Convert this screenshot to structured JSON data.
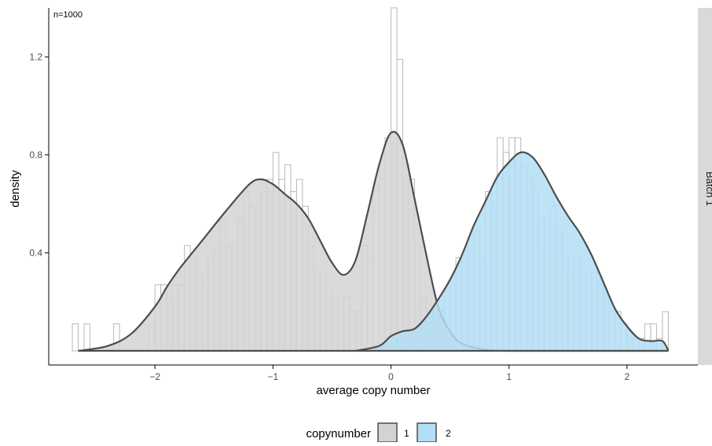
{
  "chart_data": {
    "type": "histogram-density",
    "annotation": "n=1000",
    "xlabel": "average copy number",
    "ylabel": "density",
    "strip_label": "Batch 1",
    "xlim": [
      -2.9,
      2.6
    ],
    "ylim": [
      0,
      1.4
    ],
    "x_ticks": [
      -2,
      -1,
      0,
      1,
      2
    ],
    "x_tick_labels": [
      "−2",
      "−1",
      "0",
      "1",
      "2"
    ],
    "y_ticks": [
      0.4,
      0.8,
      1.2
    ],
    "y_tick_labels": [
      "0.4",
      "0.8",
      "1.2"
    ],
    "grid": false,
    "legend": {
      "title": "copynumber",
      "position": "bottom",
      "entries": [
        {
          "label": "1",
          "fill": "#d3d3d3"
        },
        {
          "label": "2",
          "fill": "#b3def5"
        }
      ]
    },
    "colors": {
      "component_1_fill": "#d3d3d3",
      "component_2_fill": "#b3def5",
      "curve_stroke": "#4d4d4d",
      "hist_stroke": "#b8b8b8",
      "strip_fill": "#d9d9d9"
    },
    "histogram": {
      "binwidth": 0.05,
      "bins": [
        {
          "x": -2.675,
          "density": 0.11
        },
        {
          "x": -2.575,
          "density": 0.11
        },
        {
          "x": -2.325,
          "density": 0.11
        },
        {
          "x": -2.025,
          "density": 0.11
        },
        {
          "x": -1.975,
          "density": 0.27
        },
        {
          "x": -1.925,
          "density": 0.27
        },
        {
          "x": -1.875,
          "density": 0.21
        },
        {
          "x": -1.825,
          "density": 0.27
        },
        {
          "x": -1.775,
          "density": 0.27
        },
        {
          "x": -1.725,
          "density": 0.43
        },
        {
          "x": -1.675,
          "density": 0.38
        },
        {
          "x": -1.625,
          "density": 0.32
        },
        {
          "x": -1.575,
          "density": 0.27
        },
        {
          "x": -1.525,
          "density": 0.38
        },
        {
          "x": -1.475,
          "density": 0.43
        },
        {
          "x": -1.425,
          "density": 0.54
        },
        {
          "x": -1.375,
          "density": 0.43
        },
        {
          "x": -1.325,
          "density": 0.38
        },
        {
          "x": -1.275,
          "density": 0.54
        },
        {
          "x": -1.225,
          "density": 0.65
        },
        {
          "x": -1.175,
          "density": 0.59
        },
        {
          "x": -1.125,
          "density": 0.54
        },
        {
          "x": -1.075,
          "density": 0.65
        },
        {
          "x": -1.025,
          "density": 0.7
        },
        {
          "x": -0.975,
          "density": 0.81
        },
        {
          "x": -0.925,
          "density": 0.7
        },
        {
          "x": -0.875,
          "density": 0.76
        },
        {
          "x": -0.825,
          "density": 0.65
        },
        {
          "x": -0.775,
          "density": 0.7
        },
        {
          "x": -0.725,
          "density": 0.59
        },
        {
          "x": -0.675,
          "density": 0.43
        },
        {
          "x": -0.625,
          "density": 0.32
        },
        {
          "x": -0.575,
          "density": 0.32
        },
        {
          "x": -0.525,
          "density": 0.27
        },
        {
          "x": -0.475,
          "density": 0.22
        },
        {
          "x": -0.425,
          "density": 0.16
        },
        {
          "x": -0.375,
          "density": 0.22
        },
        {
          "x": -0.325,
          "density": 0.16
        },
        {
          "x": -0.275,
          "density": 0.16
        },
        {
          "x": -0.225,
          "density": 0.43
        },
        {
          "x": -0.175,
          "density": 0.38
        },
        {
          "x": -0.125,
          "density": 0.65
        },
        {
          "x": -0.075,
          "density": 0.7
        },
        {
          "x": -0.025,
          "density": 0.87
        },
        {
          "x": 0.025,
          "density": 1.4
        },
        {
          "x": 0.075,
          "density": 1.19
        },
        {
          "x": 0.125,
          "density": 0.76
        },
        {
          "x": 0.175,
          "density": 0.7
        },
        {
          "x": 0.225,
          "density": 0.43
        },
        {
          "x": 0.275,
          "density": 0.22
        },
        {
          "x": 0.325,
          "density": 0.16
        },
        {
          "x": 0.375,
          "density": 0.16
        },
        {
          "x": 0.425,
          "density": 0.16
        },
        {
          "x": 0.475,
          "density": 0.22
        },
        {
          "x": 0.525,
          "density": 0.27
        },
        {
          "x": 0.575,
          "density": 0.38
        },
        {
          "x": 0.625,
          "density": 0.38
        },
        {
          "x": 0.675,
          "density": 0.43
        },
        {
          "x": 0.725,
          "density": 0.49
        },
        {
          "x": 0.775,
          "density": 0.38
        },
        {
          "x": 0.825,
          "density": 0.65
        },
        {
          "x": 0.875,
          "density": 0.59
        },
        {
          "x": 0.925,
          "density": 0.87
        },
        {
          "x": 0.975,
          "density": 0.81
        },
        {
          "x": 1.025,
          "density": 0.87
        },
        {
          "x": 1.075,
          "density": 0.87
        },
        {
          "x": 1.125,
          "density": 0.76
        },
        {
          "x": 1.175,
          "density": 0.7
        },
        {
          "x": 1.225,
          "density": 0.65
        },
        {
          "x": 1.275,
          "density": 0.54
        },
        {
          "x": 1.325,
          "density": 0.43
        },
        {
          "x": 1.375,
          "density": 0.59
        },
        {
          "x": 1.425,
          "density": 0.49
        },
        {
          "x": 1.475,
          "density": 0.38
        },
        {
          "x": 1.525,
          "density": 0.32
        },
        {
          "x": 1.575,
          "density": 0.38
        },
        {
          "x": 1.625,
          "density": 0.32
        },
        {
          "x": 1.675,
          "density": 0.27
        },
        {
          "x": 1.725,
          "density": 0.32
        },
        {
          "x": 1.775,
          "density": 0.27
        },
        {
          "x": 1.825,
          "density": 0.22
        },
        {
          "x": 1.875,
          "density": 0.16
        },
        {
          "x": 1.925,
          "density": 0.16
        },
        {
          "x": 1.975,
          "density": 0.11
        },
        {
          "x": 2.025,
          "density": 0.05
        },
        {
          "x": 2.075,
          "density": 0.05
        },
        {
          "x": 2.125,
          "density": 0.05
        },
        {
          "x": 2.175,
          "density": 0.11
        },
        {
          "x": 2.225,
          "density": 0.11
        },
        {
          "x": 2.275,
          "density": 0.05
        },
        {
          "x": 2.325,
          "density": 0.16
        }
      ]
    },
    "series": [
      {
        "name": "1",
        "x": [
          -2.65,
          -2.4,
          -2.2,
          -2.0,
          -1.9,
          -1.8,
          -1.6,
          -1.4,
          -1.2,
          -1.1,
          -1.0,
          -0.9,
          -0.8,
          -0.7,
          -0.6,
          -0.5,
          -0.4,
          -0.3,
          -0.2,
          -0.1,
          0.0,
          0.1,
          0.2,
          0.3,
          0.4,
          0.5,
          0.6,
          0.8,
          1.0,
          1.5,
          2.0,
          2.35
        ],
        "density": [
          0.0,
          0.02,
          0.07,
          0.18,
          0.26,
          0.33,
          0.45,
          0.57,
          0.68,
          0.7,
          0.68,
          0.64,
          0.6,
          0.54,
          0.45,
          0.36,
          0.31,
          0.37,
          0.56,
          0.76,
          0.89,
          0.84,
          0.62,
          0.39,
          0.18,
          0.08,
          0.03,
          0.005,
          0.0,
          0.0,
          0.0,
          0.0
        ]
      },
      {
        "name": "2",
        "x": [
          -0.3,
          -0.1,
          0.0,
          0.1,
          0.2,
          0.3,
          0.4,
          0.5,
          0.6,
          0.7,
          0.8,
          0.9,
          1.0,
          1.1,
          1.2,
          1.3,
          1.4,
          1.5,
          1.6,
          1.7,
          1.8,
          1.9,
          2.0,
          2.1,
          2.2,
          2.3,
          2.35
        ],
        "density": [
          0.0,
          0.02,
          0.06,
          0.08,
          0.09,
          0.14,
          0.21,
          0.29,
          0.39,
          0.51,
          0.61,
          0.71,
          0.77,
          0.81,
          0.79,
          0.72,
          0.63,
          0.55,
          0.48,
          0.39,
          0.28,
          0.17,
          0.1,
          0.05,
          0.04,
          0.04,
          0.0
        ]
      }
    ]
  }
}
